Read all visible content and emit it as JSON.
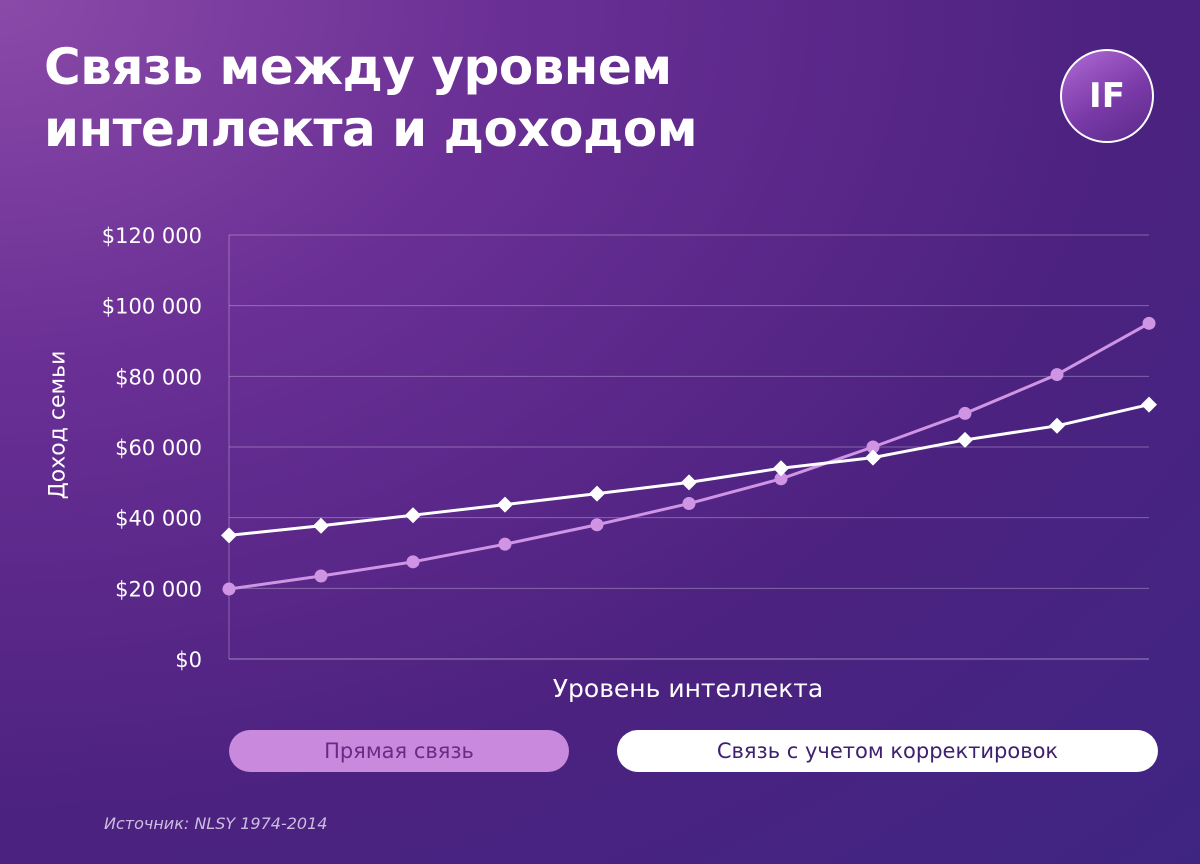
{
  "header": {
    "title_line1": "Связь между уровнем",
    "title_line2": "интеллекта и доходом",
    "logo_text": "IF"
  },
  "chart_data": {
    "type": "line",
    "title": "Связь между уровнем интеллекта и доходом",
    "xlabel": "Уровень интеллекта",
    "ylabel": "Доход семьи",
    "ylim": [
      0,
      120000
    ],
    "yticks": [
      0,
      20000,
      40000,
      60000,
      80000,
      100000,
      120000
    ],
    "ytick_labels": [
      "$0",
      "$20 000",
      "$40 000",
      "$60 000",
      "$80 000",
      "$100 000",
      "$120 000"
    ],
    "x": [
      1,
      2,
      3,
      4,
      5,
      6,
      7,
      8,
      9,
      10,
      11
    ],
    "grid": true,
    "legend_position": "bottom",
    "series": [
      {
        "name": "Прямая связь",
        "color": "#cf95e4",
        "marker": "circle",
        "values": [
          19800,
          23500,
          27500,
          32500,
          38000,
          44000,
          51000,
          60000,
          69500,
          80500,
          95000
        ]
      },
      {
        "name": "Связь с учетом корректировок",
        "color": "#ffffff",
        "marker": "diamond",
        "values": [
          35000,
          37700,
          40700,
          43700,
          46800,
          50000,
          54000,
          57000,
          62000,
          66000,
          72000
        ]
      }
    ]
  },
  "legend": {
    "item1": "Прямая связь",
    "item2": "Связь с учетом корректировок"
  },
  "footer": {
    "source": "Источник: NLSY 1974-2014"
  }
}
